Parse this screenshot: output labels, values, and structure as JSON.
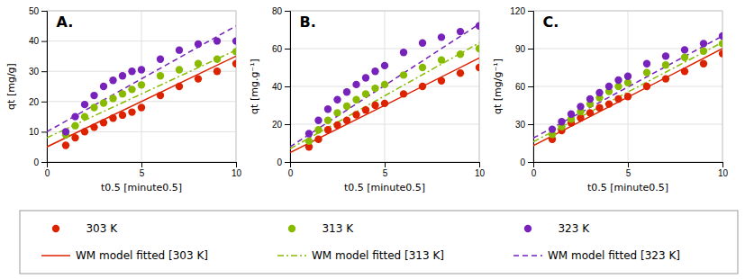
{
  "chart_data": [
    {
      "type": "scatter",
      "title": "A.",
      "x_label": "t0.5 [minute0.5]",
      "y_label": "qt [mg/g]",
      "xlim": [
        0,
        10
      ],
      "xticks": [
        0,
        5,
        10
      ],
      "ylim": [
        0,
        50
      ],
      "yticks": [
        0,
        10,
        20,
        30,
        40,
        50
      ],
      "grid": true,
      "legend": "bottom",
      "x": [
        1.0,
        1.5,
        2.0,
        2.5,
        3.0,
        3.5,
        4.0,
        4.5,
        5.0,
        6.0,
        7.0,
        8.0,
        9.0,
        10.0
      ],
      "series": [
        {
          "name": "   303 K",
          "type": "scatter",
          "marker": "circle",
          "color": "#dd2200",
          "values": [
            5.5,
            8.0,
            10.0,
            11.5,
            13.0,
            14.5,
            15.5,
            16.5,
            18.0,
            22.0,
            25.0,
            27.5,
            30.0,
            32.5
          ]
        },
        {
          "name": "   313 K",
          "type": "scatter",
          "marker": "circle",
          "color": "#88bb00",
          "values": [
            9.0,
            12.0,
            15.0,
            18.0,
            19.5,
            21.0,
            22.5,
            24.0,
            25.5,
            28.5,
            30.5,
            32.5,
            34.0,
            36.5
          ]
        },
        {
          "name": "   323 K",
          "type": "scatter",
          "marker": "circle",
          "color": "#7722bb",
          "values": [
            10.0,
            15.0,
            19.0,
            22.0,
            25.0,
            27.0,
            28.5,
            30.0,
            30.5,
            34.0,
            37.0,
            39.0,
            40.0,
            40.0
          ]
        },
        {
          "name": "WM model fitted [303 K]",
          "type": "line",
          "line_style": "solid",
          "color": "#dd2200",
          "x": [
            0.0,
            10.0
          ],
          "values": [
            5.0,
            35.0
          ]
        },
        {
          "name": "WM model fitted [313 K]",
          "type": "line",
          "line_style": "dashdot",
          "color": "#88bb00",
          "x": [
            0.0,
            10.0
          ],
          "values": [
            8.0,
            37.0
          ]
        },
        {
          "name": "WM model fitted [323 K]",
          "type": "line",
          "line_style": "dashed",
          "color": "#7722bb",
          "x": [
            0.0,
            10.0
          ],
          "values": [
            10.0,
            45.0
          ]
        }
      ]
    },
    {
      "type": "scatter",
      "title": "B.",
      "x_label": "t0.5 [minute0.5]",
      "y_label": "qt [mg.g⁻¹]",
      "xlim": [
        0,
        10
      ],
      "xticks": [
        0,
        5,
        10
      ],
      "ylim": [
        0,
        80
      ],
      "yticks": [
        0,
        20,
        40,
        60,
        80
      ],
      "grid": true,
      "legend": "bottom",
      "x": [
        1.0,
        1.5,
        2.0,
        2.5,
        3.0,
        3.5,
        4.0,
        4.5,
        5.0,
        6.0,
        7.0,
        8.0,
        9.0,
        10.0
      ],
      "series": [
        {
          "name": "   303 K",
          "type": "scatter",
          "marker": "circle",
          "color": "#dd2200",
          "values": [
            8.0,
            12.0,
            17.0,
            19.5,
            22.0,
            25.0,
            27.5,
            30.0,
            31.0,
            36.0,
            40.0,
            43.0,
            47.0,
            50.0
          ]
        },
        {
          "name": "   313 K",
          "type": "scatter",
          "marker": "circle",
          "color": "#88bb00",
          "values": [
            11.0,
            17.0,
            22.0,
            26.0,
            29.5,
            33.0,
            36.0,
            39.0,
            41.0,
            46.0,
            50.0,
            54.0,
            57.0,
            60.0
          ]
        },
        {
          "name": "   323 K",
          "type": "scatter",
          "marker": "circle",
          "color": "#7722bb",
          "values": [
            15.0,
            22.0,
            28.0,
            33.0,
            37.0,
            41.0,
            44.5,
            48.0,
            51.0,
            58.0,
            63.0,
            66.0,
            69.0,
            72.0
          ]
        },
        {
          "name": "WM model fitted [303 K]",
          "type": "line",
          "line_style": "solid",
          "color": "#dd2200",
          "x": [
            0.0,
            10.0
          ],
          "values": [
            5.0,
            55.0
          ]
        },
        {
          "name": "WM model fitted [313 K]",
          "type": "line",
          "line_style": "dashdot",
          "color": "#88bb00",
          "x": [
            0.0,
            10.0
          ],
          "values": [
            7.0,
            63.0
          ]
        },
        {
          "name": "WM model fitted [323 K]",
          "type": "line",
          "line_style": "dashed",
          "color": "#7722bb",
          "x": [
            0.0,
            10.0
          ],
          "values": [
            8.0,
            73.0
          ]
        }
      ]
    },
    {
      "type": "scatter",
      "title": "C.",
      "x_label": "t0.5 [minute0.5]",
      "y_label": "qt [mg/g⁻¹]",
      "xlim": [
        0,
        10
      ],
      "xticks": [
        0,
        5,
        10
      ],
      "ylim": [
        0,
        120
      ],
      "yticks": [
        0,
        30,
        60,
        90,
        120
      ],
      "grid": true,
      "legend": "bottom",
      "x": [
        1.0,
        1.5,
        2.0,
        2.5,
        3.0,
        3.5,
        4.0,
        4.5,
        5.0,
        6.0,
        7.0,
        8.0,
        9.0,
        10.0
      ],
      "series": [
        {
          "name": "   303 K",
          "type": "scatter",
          "marker": "circle",
          "color": "#dd2200",
          "values": [
            18.0,
            25.0,
            31.0,
            35.0,
            39.0,
            43.0,
            46.0,
            50.0,
            52.0,
            60.0,
            66.0,
            72.0,
            78.0,
            86.0
          ]
        },
        {
          "name": "   313 K",
          "type": "scatter",
          "marker": "circle",
          "color": "#88bb00",
          "values": [
            22.0,
            28.0,
            34.0,
            40.0,
            46.0,
            51.0,
            56.0,
            60.0,
            63.0,
            71.0,
            77.0,
            83.0,
            88.0,
            94.0
          ]
        },
        {
          "name": "   323 K",
          "type": "scatter",
          "marker": "circle",
          "color": "#7722bb",
          "values": [
            26.0,
            32.0,
            38.0,
            44.0,
            50.0,
            55.0,
            60.0,
            65.0,
            68.0,
            78.0,
            84.0,
            89.0,
            94.0,
            100.0
          ]
        },
        {
          "name": "WM model fitted [303 K]",
          "type": "line",
          "line_style": "solid",
          "color": "#dd2200",
          "x": [
            0.0,
            10.0
          ],
          "values": [
            13.0,
            90.0
          ]
        },
        {
          "name": "WM model fitted [313 K]",
          "type": "line",
          "line_style": "dashdot",
          "color": "#88bb00",
          "x": [
            0.0,
            10.0
          ],
          "values": [
            16.0,
            95.0
          ]
        },
        {
          "name": "WM model fitted [323 K]",
          "type": "line",
          "line_style": "dashed",
          "color": "#7722bb",
          "x": [
            0.0,
            10.0
          ],
          "values": [
            19.0,
            100.0
          ]
        }
      ]
    }
  ]
}
